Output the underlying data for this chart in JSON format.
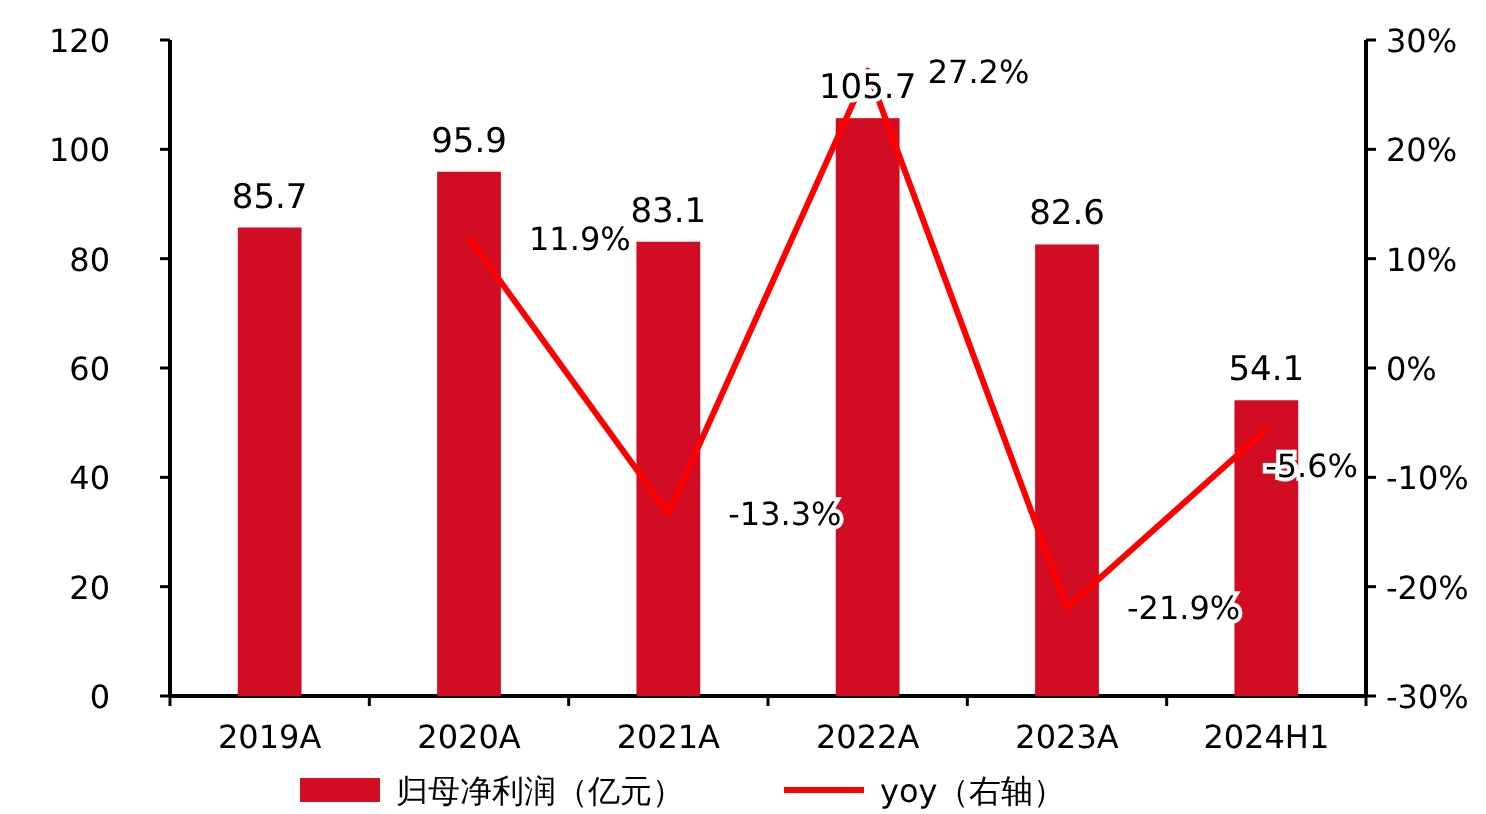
{
  "chart_data": {
    "type": "bar",
    "categories": [
      "2019A",
      "2020A",
      "2021A",
      "2022A",
      "2023A",
      "2024H1"
    ],
    "series": [
      {
        "name": "归母净利润（亿元）",
        "color": "#d20c22",
        "values": [
          85.7,
          95.9,
          83.1,
          105.7,
          82.6,
          54.1
        ],
        "value_labels": [
          "85.7",
          "95.9",
          "83.1",
          "105.7",
          "82.6",
          "54.1"
        ]
      },
      {
        "name": "yoy（右轴）",
        "type": "line",
        "axis": "y2",
        "color": "#ff0000",
        "values": [
          null,
          11.9,
          -13.3,
          27.2,
          -21.9,
          -5.6
        ],
        "value_labels": [
          null,
          "11.9%",
          "-13.3%",
          "27.2%",
          "-21.9%",
          "-5.6%"
        ]
      }
    ],
    "ylim": [
      0,
      120
    ],
    "yticks": [
      0,
      20,
      40,
      60,
      80,
      100,
      120
    ],
    "y2lim": [
      -30,
      30
    ],
    "y2ticks": [
      {
        "value": -30,
        "label": "-30%"
      },
      {
        "value": -20,
        "label": "-20%"
      },
      {
        "value": -10,
        "label": "-10%"
      },
      {
        "value": 0,
        "label": "0%"
      },
      {
        "value": 10,
        "label": "10%"
      },
      {
        "value": 20,
        "label": "20%"
      },
      {
        "value": 30,
        "label": "30%"
      }
    ],
    "grid": false,
    "legend": "bottom"
  }
}
